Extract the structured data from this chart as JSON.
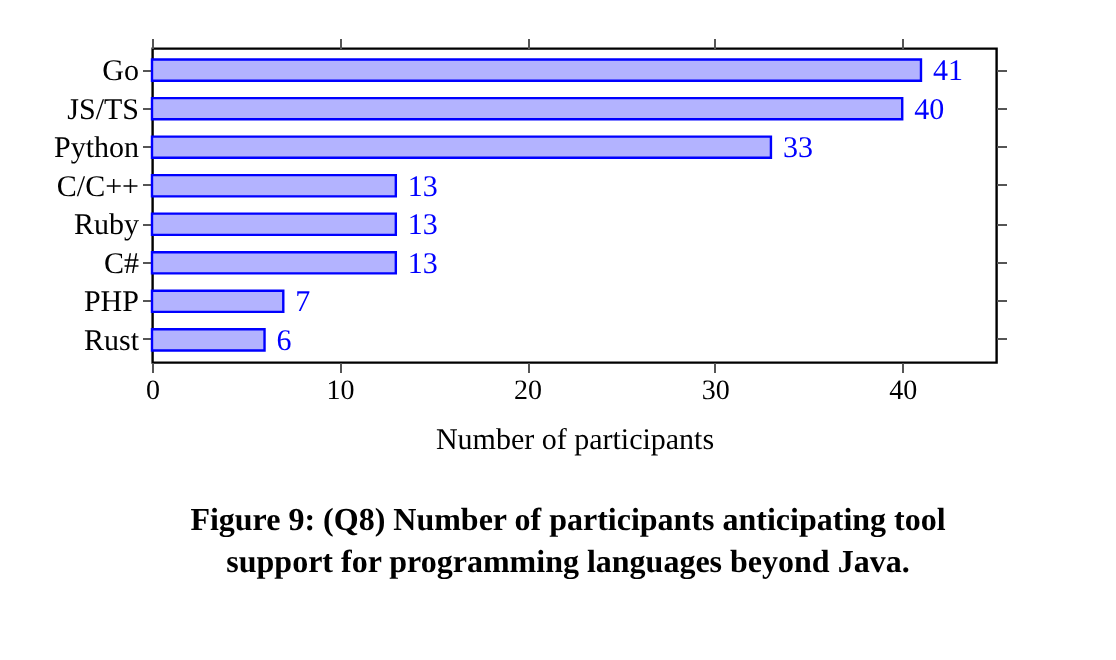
{
  "chart_data": {
    "type": "bar",
    "orientation": "horizontal",
    "title": "Figure 9: (Q8) Number of participants anticipating tool support for programming languages beyond Java.",
    "xlabel": "Number of participants",
    "categories": [
      "Go",
      "JS/TS",
      "Python",
      "C/C++",
      "Ruby",
      "C#",
      "PHP",
      "Rust"
    ],
    "values": [
      41,
      40,
      33,
      13,
      13,
      13,
      7,
      6
    ],
    "color": "#b3b3ff",
    "xlim": [
      0,
      45
    ],
    "xticks": [
      0,
      10,
      20,
      30,
      40
    ],
    "grid": false,
    "data_labels": true
  }
}
